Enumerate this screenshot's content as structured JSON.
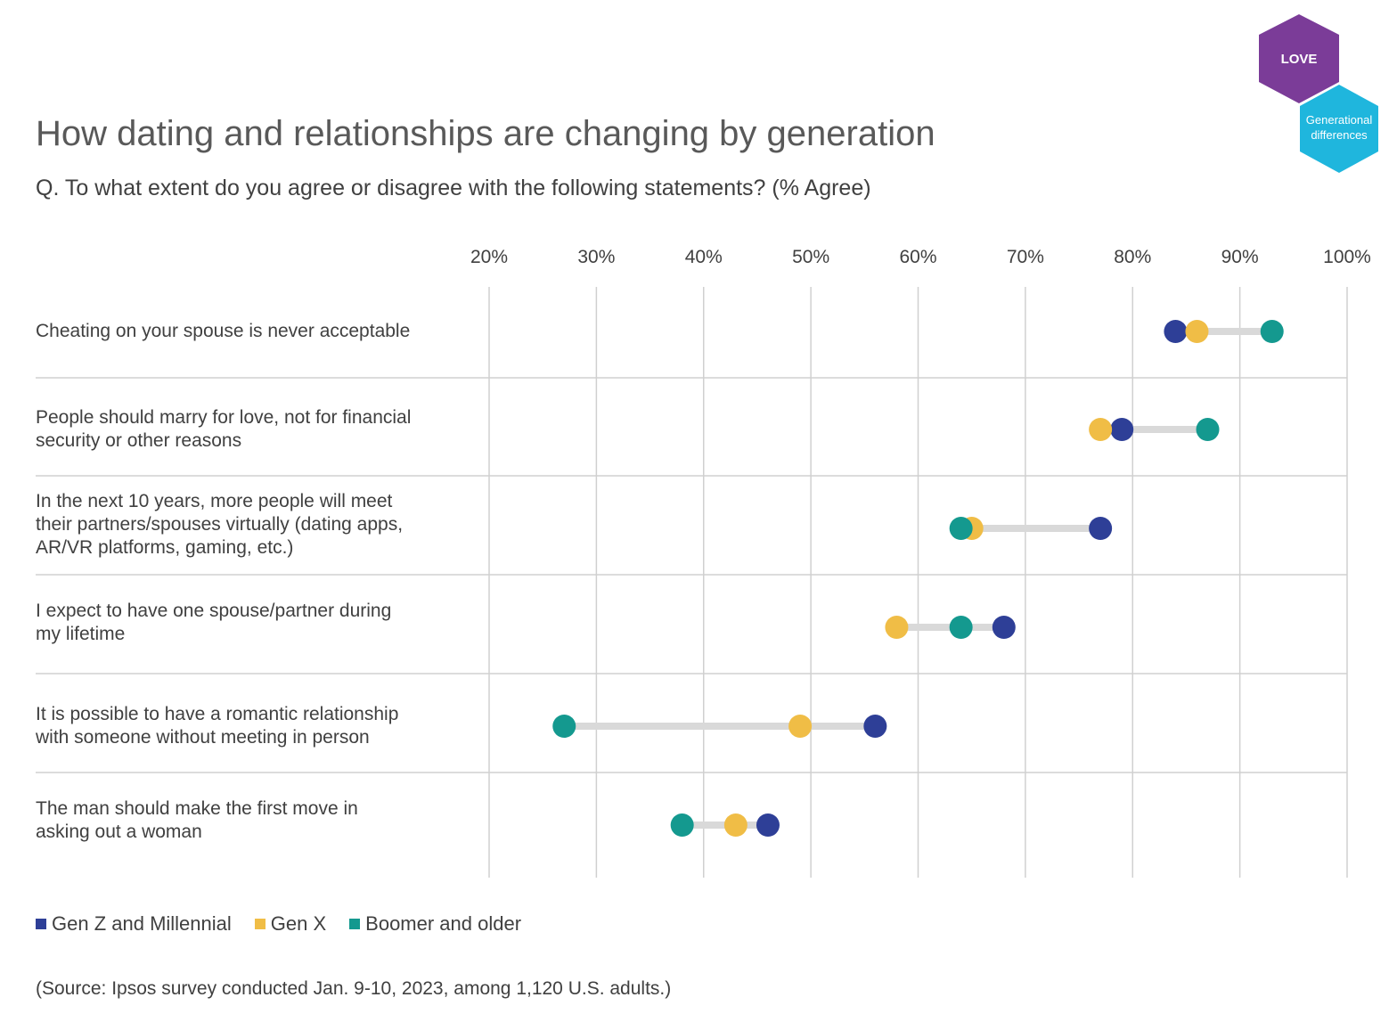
{
  "header": {
    "title": "How dating and relationships are changing by generation",
    "subtitle": "Q. To what extent do you agree or disagree with the following statements? (% Agree)"
  },
  "badges": {
    "love": "LOVE",
    "generational_line1": "Generational",
    "generational_line2": "differences",
    "love_color": "#7b3c98",
    "generational_color": "#1fb6dd"
  },
  "source": "(Source: Ipsos survey conducted Jan. 9-10, 2023, among 1,120 U.S. adults.)",
  "chart_data": {
    "type": "dot-plot",
    "title": "How dating and relationships are changing by generation",
    "xlabel": "% Agree",
    "xlim": [
      20,
      100
    ],
    "xticks": [
      20,
      30,
      40,
      50,
      60,
      70,
      80,
      90,
      100
    ],
    "xtick_labels": [
      "20%",
      "30%",
      "40%",
      "50%",
      "60%",
      "70%",
      "80%",
      "90%",
      "100%"
    ],
    "grid": true,
    "legend_position": "bottom-left",
    "categories": [
      {
        "line1": "Cheating on your spouse is never acceptable",
        "line2": "",
        "line3": ""
      },
      {
        "line1": "People should marry for love, not for financial",
        "line2": "security or other reasons",
        "line3": ""
      },
      {
        "line1": "In the next 10 years, more people will meet",
        "line2": "their partners/spouses virtually (dating apps,",
        "line3": "AR/VR platforms, gaming, etc.)"
      },
      {
        "line1": "I expect to have one spouse/partner during",
        "line2": "my lifetime",
        "line3": ""
      },
      {
        "line1": "It is possible to have a romantic relationship",
        "line2": "with someone without meeting in person",
        "line3": ""
      },
      {
        "line1": "The man should make the first move in",
        "line2": "asking out a woman",
        "line3": ""
      }
    ],
    "series": [
      {
        "name": "Gen Z and Millennial",
        "color": "#2e3f97",
        "values": [
          84,
          79,
          77,
          68,
          56,
          46
        ]
      },
      {
        "name": "Gen X",
        "color": "#f0bd46",
        "values": [
          86,
          77,
          65,
          58,
          49,
          43
        ]
      },
      {
        "name": "Boomer and older",
        "color": "#14998f",
        "values": [
          93,
          87,
          64,
          64,
          27,
          38
        ]
      }
    ]
  }
}
